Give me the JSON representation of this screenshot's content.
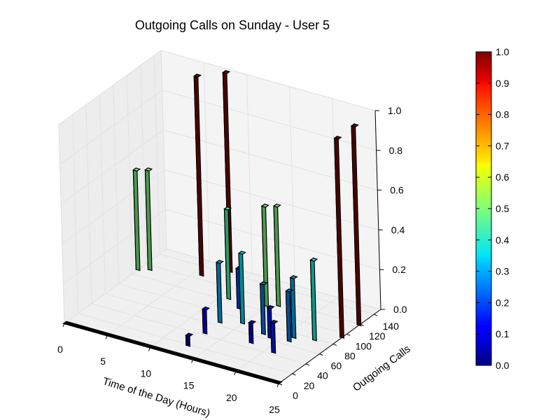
{
  "chart_data": {
    "type": "bar3d",
    "title": "Outgoing Calls on Sunday - User 5",
    "xlabel": "Time of the Day (Hours)",
    "ylabel": "Outgoing Calls",
    "zlabel": "",
    "xlim": [
      0,
      25
    ],
    "ylim": [
      0,
      150
    ],
    "zlim": [
      0,
      1.0
    ],
    "xticks": [
      "0",
      "5",
      "10",
      "15",
      "20",
      "25"
    ],
    "yticks": [
      "0",
      "20",
      "40",
      "60",
      "80",
      "100",
      "120",
      "140"
    ],
    "zticks": [
      "0.0",
      "0.2",
      "0.4",
      "0.6",
      "0.8",
      "1.0"
    ],
    "grid": true,
    "colormap": "jet",
    "colorbar": {
      "range": [
        0,
        1
      ],
      "ticks": [
        "0.0",
        "0.1",
        "0.2",
        "0.3",
        "0.4",
        "0.5",
        "0.6",
        "0.7",
        "0.8",
        "0.9",
        "1.0"
      ]
    },
    "bars": [
      {
        "x": 0,
        "y": 110,
        "z": 0.5
      },
      {
        "x": 1,
        "y": 115,
        "z": 0.5
      },
      {
        "x": 6,
        "y": 128,
        "z": 1.0
      },
      {
        "x": 8,
        "y": 145,
        "z": 1.0
      },
      {
        "x": 13,
        "y": 20,
        "z": 0.05
      },
      {
        "x": 13,
        "y": 45,
        "z": 0.12
      },
      {
        "x": 13,
        "y": 67,
        "z": 0.3
      },
      {
        "x": 11,
        "y": 105,
        "z": 0.45
      },
      {
        "x": 13,
        "y": 95,
        "z": 0.2
      },
      {
        "x": 15,
        "y": 75,
        "z": 0.35
      },
      {
        "x": 18,
        "y": 50,
        "z": 0.1
      },
      {
        "x": 18,
        "y": 68,
        "z": 0.25
      },
      {
        "x": 15,
        "y": 110,
        "z": 0.5
      },
      {
        "x": 16,
        "y": 115,
        "z": 0.5
      },
      {
        "x": 21,
        "y": 45,
        "z": 0.15
      },
      {
        "x": 19,
        "y": 65,
        "z": 0.15
      },
      {
        "x": 21,
        "y": 68,
        "z": 0.25
      },
      {
        "x": 21,
        "y": 75,
        "z": 0.3
      },
      {
        "x": 23,
        "y": 80,
        "z": 0.4
      },
      {
        "x": 25,
        "y": 95,
        "z": 1.0
      },
      {
        "x": 25,
        "y": 120,
        "z": 1.0
      }
    ]
  }
}
